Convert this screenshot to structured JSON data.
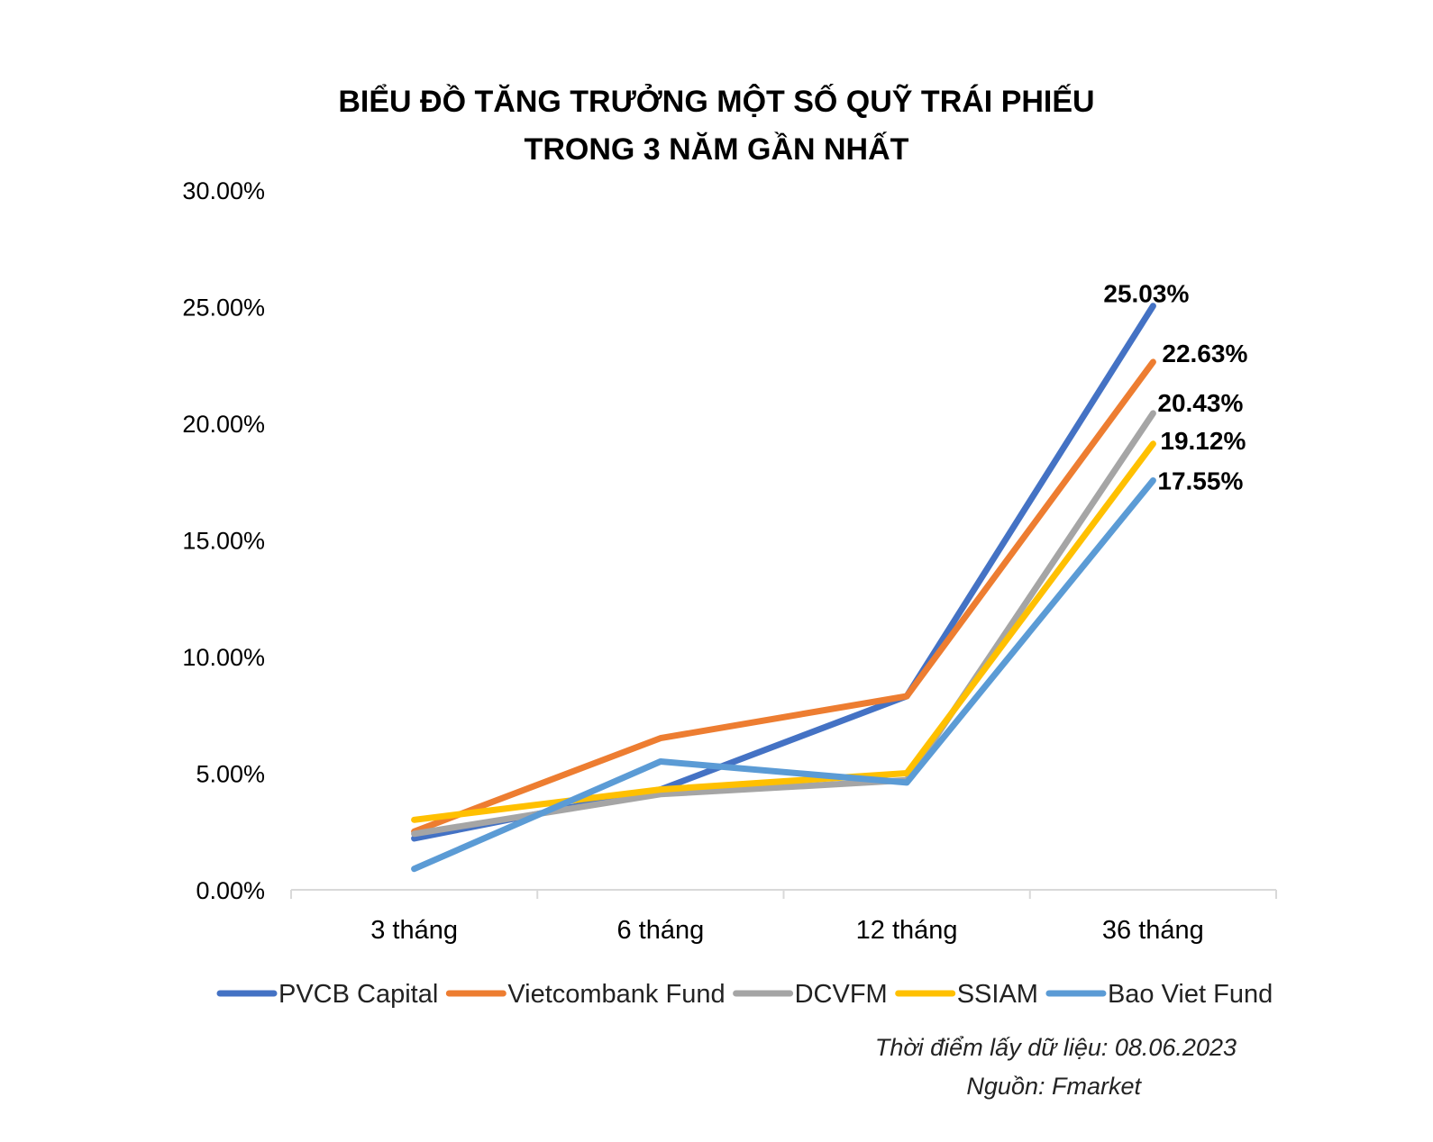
{
  "chart_data": {
    "type": "line",
    "title_line1": "BIỂU ĐỒ TĂNG TRƯỞNG MỘT SỐ QUỸ TRÁI PHIẾU",
    "title_line2": "TRONG 3 NĂM GẦN NHẤT",
    "categories": [
      "3 tháng",
      "6 tháng",
      "12 tháng",
      "36 tháng"
    ],
    "ylim": [
      0,
      30
    ],
    "y_ticks": [
      0,
      5,
      10,
      15,
      20,
      25,
      30
    ],
    "y_tick_labels": [
      "0.00%",
      "5.00%",
      "10.00%",
      "15.00%",
      "20.00%",
      "25.00%",
      "30.00%"
    ],
    "grid": false,
    "legend_position": "bottom",
    "series": [
      {
        "name": "PVCB Capital",
        "color": "#4472C4",
        "values": [
          2.2,
          4.3,
          8.3,
          25.03
        ],
        "end_label": "25.03%"
      },
      {
        "name": "Vietcombank Fund",
        "color": "#ED7D31",
        "values": [
          2.5,
          6.5,
          8.3,
          22.63
        ],
        "end_label": "22.63%"
      },
      {
        "name": "DCVFM",
        "color": "#A5A5A5",
        "values": [
          2.4,
          4.1,
          4.7,
          20.43
        ],
        "end_label": "20.43%"
      },
      {
        "name": "SSIAM",
        "color": "#FFC000",
        "values": [
          3.0,
          4.3,
          5.0,
          19.12
        ],
        "end_label": "19.12%"
      },
      {
        "name": "Bao Viet Fund",
        "color": "#5B9BD5",
        "values": [
          0.9,
          5.5,
          4.6,
          17.55
        ],
        "end_label": "17.55%"
      }
    ]
  },
  "footer": {
    "date_note": "Thời điểm lấy dữ liệu: 08.06.2023",
    "source_note": "Nguồn: Fmarket"
  }
}
